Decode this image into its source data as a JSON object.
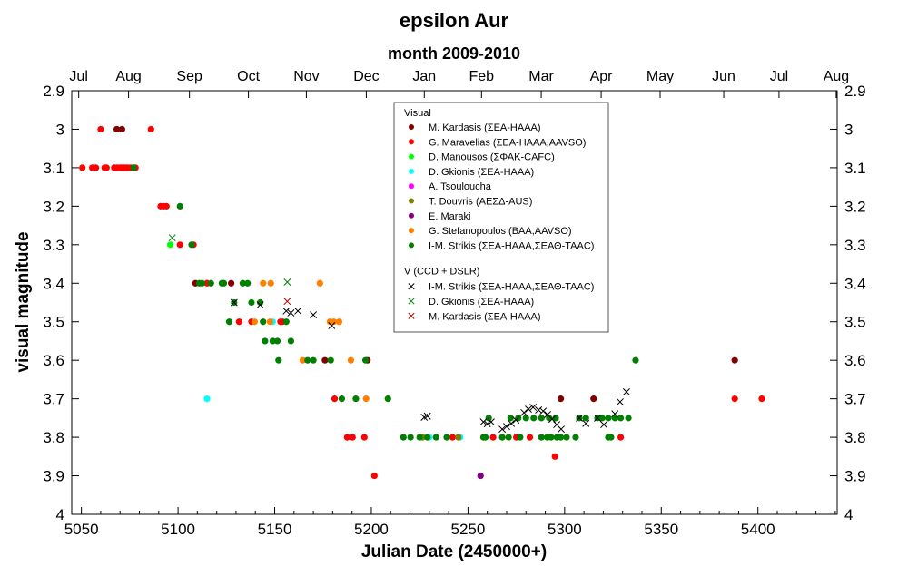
{
  "chart_data": {
    "type": "scatter",
    "title": "epsilon Aur",
    "subtitle": "month 2009-2010",
    "xlabel": "Julian Date (2450000+)",
    "ylabel": "visual magnitude",
    "xlim": [
      5045,
      5441
    ],
    "ylim": [
      4,
      2.9
    ],
    "y_inverted": true,
    "grid": false,
    "legend_position": "top-center",
    "x_ticks": [
      5050,
      5100,
      5150,
      5200,
      5250,
      5300,
      5350,
      5400
    ],
    "y_ticks": [
      "2.9",
      "3",
      "3.1",
      "3.2",
      "3.3",
      "3.4",
      "3.5",
      "3.6",
      "3.7",
      "3.8",
      "3.9",
      "4"
    ],
    "top_axis": [
      {
        "label": "Jul",
        "jd": 5048.6
      },
      {
        "label": "Aug",
        "jd": 5074.4
      },
      {
        "label": "Sep",
        "jd": 5105.9
      },
      {
        "label": "Oct",
        "jd": 5136.4
      },
      {
        "label": "Nov",
        "jd": 5166.4
      },
      {
        "label": "Dec",
        "jd": 5197.4
      },
      {
        "label": "Jan",
        "jd": 5227.4
      },
      {
        "label": "Feb",
        "jd": 5257
      },
      {
        "label": "Mar",
        "jd": 5287.9
      },
      {
        "label": "Apr",
        "jd": 5318.9
      },
      {
        "label": "May",
        "jd": 5349.4
      },
      {
        "label": "Jun",
        "jd": 5382.3
      },
      {
        "label": "Jul",
        "jd": 5410.9
      },
      {
        "label": "Aug",
        "jd": 5440.5
      }
    ],
    "legend_groups": [
      "Visual",
      "V (CCD + DSLR)"
    ],
    "series": [
      {
        "name": "M. Kardasis (ΣΕΑ-HAAA)",
        "group": 0,
        "marker": "dot",
        "color": "#800000",
        "points": [
          [
            5068.3,
            3.0
          ],
          [
            5071,
            3.0
          ],
          [
            5109,
            3.4
          ],
          [
            5127.5,
            3.4
          ],
          [
            5176,
            3.6
          ],
          [
            5198,
            3.6
          ],
          [
            5298,
            3.7
          ],
          [
            5315,
            3.7
          ],
          [
            5388,
            3.6
          ]
        ]
      },
      {
        "name": "G. Maravelias (ΣΕΑ-HAAA,AAVSO)",
        "group": 0,
        "marker": "dot",
        "color": "#ff0000",
        "points": [
          [
            5060,
            3.0
          ],
          [
            5086,
            3.0
          ],
          [
            5050.5,
            3.1
          ],
          [
            5055.6,
            3.1
          ],
          [
            5057.5,
            3.1
          ],
          [
            5062,
            3.1
          ],
          [
            5063,
            3.1
          ],
          [
            5067,
            3.1
          ],
          [
            5068.5,
            3.1
          ],
          [
            5070,
            3.1
          ],
          [
            5071,
            3.1
          ],
          [
            5072,
            3.1
          ],
          [
            5073,
            3.1
          ],
          [
            5074,
            3.1
          ],
          [
            5075.5,
            3.1
          ],
          [
            5078,
            3.1
          ],
          [
            5091,
            3.2
          ],
          [
            5092.5,
            3.2
          ],
          [
            5094,
            3.2
          ],
          [
            5101,
            3.3
          ],
          [
            5108,
            3.3
          ],
          [
            5115,
            3.4
          ],
          [
            5131.6,
            3.5
          ],
          [
            5138,
            3.5
          ],
          [
            5153,
            3.5
          ],
          [
            5154,
            3.5
          ],
          [
            5181,
            3.7
          ],
          [
            5187.5,
            3.8
          ],
          [
            5190.3,
            3.8
          ],
          [
            5196.4,
            3.8
          ],
          [
            5201.6,
            3.9
          ],
          [
            5242,
            3.8
          ],
          [
            5263,
            3.8
          ],
          [
            5275,
            3.8
          ],
          [
            5282,
            3.8
          ],
          [
            5295,
            3.85
          ],
          [
            5329,
            3.8
          ],
          [
            5388,
            3.7
          ],
          [
            5402,
            3.7
          ]
        ]
      },
      {
        "name": "D. Manousos (ΣΦΑΚ-CAFC)",
        "group": 0,
        "marker": "dot",
        "color": "#00ff00",
        "points": [
          [
            5096,
            3.3
          ]
        ]
      },
      {
        "name": "D. Gkionis (ΣΕΑ-HAAA)",
        "group": 0,
        "marker": "dot",
        "color": "#00ffff",
        "points": [
          [
            5115,
            3.7
          ],
          [
            5149,
            3.5
          ],
          [
            5230,
            3.8
          ],
          [
            5246,
            3.8
          ]
        ]
      },
      {
        "name": "A. Tsouloucha",
        "group": 0,
        "marker": "dot",
        "color": "#ff00ff",
        "points": []
      },
      {
        "name": "T. Douvris (ΑΕΣΔ-AUS)",
        "group": 0,
        "marker": "dot",
        "color": "#808000",
        "points": [
          [
            5226.5,
            3.8
          ],
          [
            5245,
            3.8
          ]
        ]
      },
      {
        "name": "E. Maraki",
        "group": 0,
        "marker": "dot",
        "color": "#800080",
        "points": [
          [
            5256.5,
            3.9
          ]
        ]
      },
      {
        "name": "G. Stefanopoulos (BAA,AAVSO)",
        "group": 0,
        "marker": "dot",
        "color": "#ff8000",
        "points": [
          [
            5144,
            3.4
          ],
          [
            5148,
            3.4
          ],
          [
            5173.4,
            3.4
          ],
          [
            5139.6,
            3.5
          ],
          [
            5147.6,
            3.5
          ],
          [
            5178.6,
            3.5
          ],
          [
            5180.5,
            3.5
          ],
          [
            5183.3,
            3.5
          ],
          [
            5164.5,
            3.6
          ],
          [
            5189.4,
            3.6
          ],
          [
            5197.3,
            3.7
          ]
        ]
      },
      {
        "name": "I-M. Strikis (ΣΕΑ-HAAA,ΣΕΑΘ-TAAC)",
        "group": 0,
        "marker": "dot",
        "color": "#008000",
        "points": [
          [
            5077,
            3.1
          ],
          [
            5101,
            3.2
          ],
          [
            5107,
            3.3
          ],
          [
            5111,
            3.4
          ],
          [
            5112.4,
            3.4
          ],
          [
            5117,
            3.4
          ],
          [
            5122.7,
            3.4
          ],
          [
            5123.7,
            3.4
          ],
          [
            5133.5,
            3.4
          ],
          [
            5136,
            3.4
          ],
          [
            5129,
            3.45
          ],
          [
            5138,
            3.45
          ],
          [
            5142.5,
            3.45
          ],
          [
            5126.5,
            3.5
          ],
          [
            5144,
            3.5
          ],
          [
            5156,
            3.5
          ],
          [
            5145,
            3.55
          ],
          [
            5149,
            3.55
          ],
          [
            5151.4,
            3.55
          ],
          [
            5158.4,
            3.55
          ],
          [
            5152,
            3.6
          ],
          [
            5167,
            3.6
          ],
          [
            5170,
            3.6
          ],
          [
            5179,
            3.6
          ],
          [
            5197,
            3.6
          ],
          [
            5184.7,
            3.7
          ],
          [
            5192,
            3.7
          ],
          [
            5208.6,
            3.7
          ],
          [
            5216.6,
            3.8
          ],
          [
            5220.3,
            3.8
          ],
          [
            5225,
            3.8
          ],
          [
            5229,
            3.8
          ],
          [
            5233.5,
            3.8
          ],
          [
            5239,
            3.8
          ],
          [
            5258,
            3.8
          ],
          [
            5259,
            3.8
          ],
          [
            5267.7,
            3.8
          ],
          [
            5271,
            3.8
          ],
          [
            5277,
            3.8
          ],
          [
            5288,
            3.8
          ],
          [
            5291,
            3.8
          ],
          [
            5293,
            3.8
          ],
          [
            5296,
            3.8
          ],
          [
            5298,
            3.8
          ],
          [
            5301,
            3.8
          ],
          [
            5305.7,
            3.8
          ],
          [
            5322.6,
            3.8
          ],
          [
            5324,
            3.8
          ],
          [
            5260.7,
            3.75
          ],
          [
            5272,
            3.75
          ],
          [
            5276,
            3.75
          ],
          [
            5280,
            3.75
          ],
          [
            5284,
            3.75
          ],
          [
            5288,
            3.75
          ],
          [
            5292,
            3.75
          ],
          [
            5295.4,
            3.75
          ],
          [
            5307.6,
            3.75
          ],
          [
            5311,
            3.75
          ],
          [
            5317,
            3.75
          ],
          [
            5319.4,
            3.75
          ],
          [
            5322.6,
            3.75
          ],
          [
            5326,
            3.75
          ],
          [
            5329,
            3.75
          ],
          [
            5333,
            3.75
          ],
          [
            5336.7,
            3.6
          ]
        ]
      },
      {
        "name": "I-M. Strikis (ΣΕΑ-HAAA,ΣΕΑΘ-TAAC)",
        "group": 1,
        "marker": "x",
        "color": "#000000",
        "points": [
          [
            5129,
            3.45
          ],
          [
            5142.5,
            3.456
          ],
          [
            5156,
            3.472
          ],
          [
            5158.4,
            3.477
          ],
          [
            5162,
            3.472
          ],
          [
            5170,
            3.482
          ],
          [
            5179.5,
            3.51
          ],
          [
            5227.4,
            3.748
          ],
          [
            5229,
            3.745
          ],
          [
            5258,
            3.76
          ],
          [
            5260,
            3.765
          ],
          [
            5262,
            3.76
          ],
          [
            5267.7,
            3.779
          ],
          [
            5270,
            3.772
          ],
          [
            5272.4,
            3.764
          ],
          [
            5274.8,
            3.755
          ],
          [
            5279,
            3.736
          ],
          [
            5281.3,
            3.727
          ],
          [
            5283.7,
            3.722
          ],
          [
            5286.5,
            3.729
          ],
          [
            5288.9,
            3.732
          ],
          [
            5291.2,
            3.741
          ],
          [
            5293.5,
            3.753
          ],
          [
            5295.9,
            3.767
          ],
          [
            5298.2,
            3.779
          ],
          [
            5307.6,
            3.75
          ],
          [
            5311,
            3.764
          ],
          [
            5317,
            3.75
          ],
          [
            5320.3,
            3.767
          ],
          [
            5326,
            3.739
          ],
          [
            5328.7,
            3.708
          ],
          [
            5332,
            3.682
          ]
        ]
      },
      {
        "name": "D. Gkionis (ΣΕΑ-HAAA)",
        "group": 1,
        "marker": "x",
        "color": "#008000",
        "points": [
          [
            5097,
            3.282
          ],
          [
            5156.5,
            3.397
          ]
        ]
      },
      {
        "name": "M. Kardasis (ΣΕΑ-HAAA)",
        "group": 1,
        "marker": "x",
        "color": "#c00000",
        "points": [
          [
            5156.5,
            3.447
          ]
        ]
      }
    ]
  }
}
